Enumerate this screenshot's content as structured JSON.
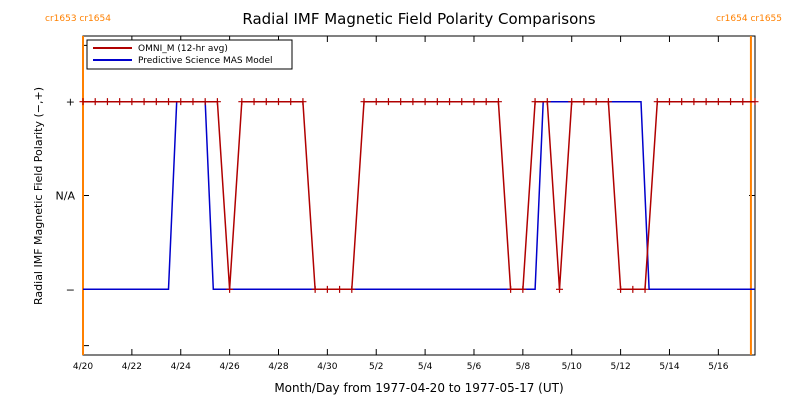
{
  "chart_data": {
    "type": "line",
    "title": "Radial IMF Magnetic Field Polarity Comparisons",
    "xlabel": "Month/Day from 1977-04-20 to 1977-05-17 (UT)",
    "ylabel": "Radial IMF Magnetic Field Polarity (−,+)",
    "x_start": "1977-04-20",
    "x_end": "1977-05-17",
    "xlim": [
      "1977-04-20",
      "1977-05-17T12:00"
    ],
    "ylim": [
      -1.7,
      1.7
    ],
    "x_ticks": [
      {
        "date": "1977-04-20",
        "label": "4/20"
      },
      {
        "date": "1977-04-22",
        "label": "4/22"
      },
      {
        "date": "1977-04-24",
        "label": "4/24"
      },
      {
        "date": "1977-04-26",
        "label": "4/26"
      },
      {
        "date": "1977-04-28",
        "label": "4/28"
      },
      {
        "date": "1977-04-30",
        "label": "4/30"
      },
      {
        "date": "1977-05-02",
        "label": "5/2"
      },
      {
        "date": "1977-05-04",
        "label": "5/4"
      },
      {
        "date": "1977-05-06",
        "label": "5/6"
      },
      {
        "date": "1977-05-08",
        "label": "5/8"
      },
      {
        "date": "1977-05-10",
        "label": "5/10"
      },
      {
        "date": "1977-05-12",
        "label": "5/12"
      },
      {
        "date": "1977-05-14",
        "label": "5/14"
      },
      {
        "date": "1977-05-16",
        "label": "5/16"
      }
    ],
    "y_ticks": [
      {
        "value": 1,
        "label": "+"
      },
      {
        "value": 0,
        "label": "N/A"
      },
      {
        "value": -1,
        "label": "−"
      }
    ],
    "carrington_markers": [
      {
        "date": "1977-04-20",
        "label": "cr1653 cr1654",
        "label_side": "left"
      },
      {
        "date": "1977-05-17T08:00",
        "label": "cr1654 cr1655",
        "label_side": "right"
      }
    ],
    "marker_color": "#ff8000",
    "legend_position": "top-left",
    "series": [
      {
        "name": "OMNI_M (12-hr avg)",
        "color": "#b00000",
        "marker": "plus",
        "points": [
          [
            "1977-04-20T00:00",
            1
          ],
          [
            "1977-04-20T12:00",
            1
          ],
          [
            "1977-04-21T00:00",
            1
          ],
          [
            "1977-04-21T12:00",
            1
          ],
          [
            "1977-04-22T00:00",
            1
          ],
          [
            "1977-04-22T12:00",
            1
          ],
          [
            "1977-04-23T00:00",
            1
          ],
          [
            "1977-04-23T12:00",
            1
          ],
          [
            "1977-04-24T00:00",
            1
          ],
          [
            "1977-04-24T12:00",
            1
          ],
          [
            "1977-04-25T00:00",
            1
          ],
          [
            "1977-04-25T12:00",
            1
          ],
          [
            "1977-04-26T00:00",
            -1
          ],
          [
            "1977-04-26T12:00",
            1
          ],
          [
            "1977-04-27T00:00",
            1
          ],
          [
            "1977-04-27T12:00",
            1
          ],
          [
            "1977-04-28T00:00",
            1
          ],
          [
            "1977-04-28T12:00",
            1
          ],
          [
            "1977-04-29T00:00",
            1
          ],
          [
            "1977-04-29T12:00",
            -1
          ],
          [
            "1977-04-30T00:00",
            -1
          ],
          [
            "1977-04-30T12:00",
            -1
          ],
          [
            "1977-05-01T00:00",
            -1
          ],
          [
            "1977-05-01T12:00",
            1
          ],
          [
            "1977-05-02T00:00",
            1
          ],
          [
            "1977-05-02T12:00",
            1
          ],
          [
            "1977-05-03T00:00",
            1
          ],
          [
            "1977-05-03T12:00",
            1
          ],
          [
            "1977-05-04T00:00",
            1
          ],
          [
            "1977-05-04T12:00",
            1
          ],
          [
            "1977-05-05T00:00",
            1
          ],
          [
            "1977-05-05T12:00",
            1
          ],
          [
            "1977-05-06T00:00",
            1
          ],
          [
            "1977-05-06T12:00",
            1
          ],
          [
            "1977-05-07T00:00",
            1
          ],
          [
            "1977-05-07T12:00",
            -1
          ],
          [
            "1977-05-08T00:00",
            -1
          ],
          [
            "1977-05-08T12:00",
            1
          ],
          [
            "1977-05-09T00:00",
            1
          ],
          [
            "1977-05-09T12:00",
            -1
          ],
          [
            "1977-05-10T00:00",
            1
          ],
          [
            "1977-05-10T12:00",
            1
          ],
          [
            "1977-05-11T00:00",
            1
          ],
          [
            "1977-05-11T12:00",
            1
          ],
          [
            "1977-05-12T00:00",
            -1
          ],
          [
            "1977-05-12T12:00",
            -1
          ],
          [
            "1977-05-13T00:00",
            -1
          ],
          [
            "1977-05-13T12:00",
            1
          ],
          [
            "1977-05-14T00:00",
            1
          ],
          [
            "1977-05-14T12:00",
            1
          ],
          [
            "1977-05-15T00:00",
            1
          ],
          [
            "1977-05-15T12:00",
            1
          ],
          [
            "1977-05-16T00:00",
            1
          ],
          [
            "1977-05-16T12:00",
            1
          ],
          [
            "1977-05-17T00:00",
            1
          ],
          [
            "1977-05-17T12:00",
            1
          ]
        ]
      },
      {
        "name": "Predictive Science MAS Model",
        "color": "#0000cc",
        "marker": "none",
        "points": [
          [
            "1977-04-20T00:00",
            -1
          ],
          [
            "1977-04-23T12:00",
            -1
          ],
          [
            "1977-04-23T20:00",
            1
          ],
          [
            "1977-04-25T00:00",
            1
          ],
          [
            "1977-04-25T08:00",
            -1
          ],
          [
            "1977-05-08T12:00",
            -1
          ],
          [
            "1977-05-08T20:00",
            1
          ],
          [
            "1977-05-12T20:00",
            1
          ],
          [
            "1977-05-13T04:00",
            -1
          ],
          [
            "1977-05-17T12:00",
            -1
          ]
        ]
      }
    ],
    "grid": false
  }
}
